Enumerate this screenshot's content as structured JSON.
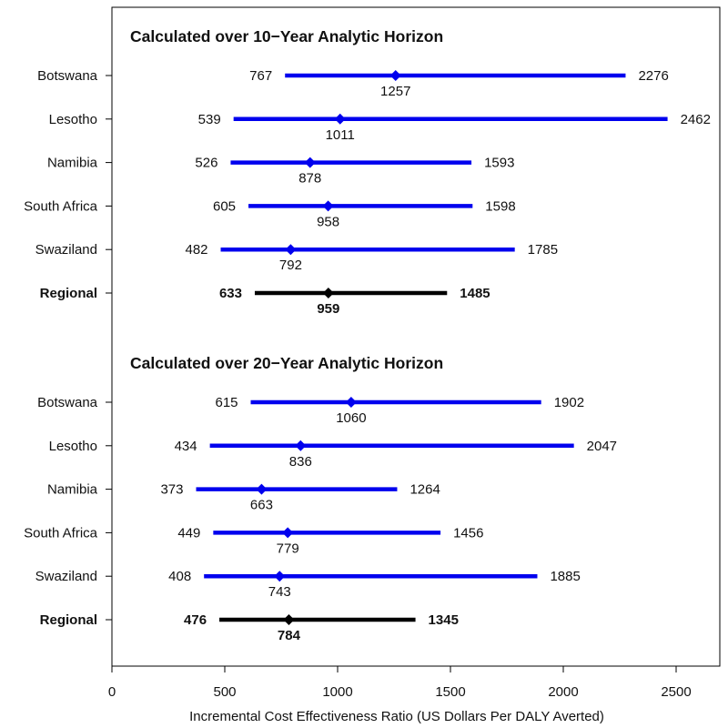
{
  "chart_data": {
    "type": "forest",
    "xlabel": "Incremental Cost Effectiveness Ratio (US Dollars Per DALY Averted)",
    "xlim": [
      0,
      2700
    ],
    "xticks": [
      0,
      500,
      1000,
      1500,
      2000,
      2500
    ],
    "grid": false,
    "colors": {
      "country": "#0000ee",
      "regional": "#000000"
    },
    "panels": [
      {
        "title": "Calculated over 10−Year Analytic Horizon",
        "rows": [
          {
            "label": "Botswana",
            "low": 767,
            "point": 1257,
            "high": 2276,
            "regional": false
          },
          {
            "label": "Lesotho",
            "low": 539,
            "point": 1011,
            "high": 2462,
            "regional": false
          },
          {
            "label": "Namibia",
            "low": 526,
            "point": 878,
            "high": 1593,
            "regional": false
          },
          {
            "label": "South Africa",
            "low": 605,
            "point": 958,
            "high": 1598,
            "regional": false
          },
          {
            "label": "Swaziland",
            "low": 482,
            "point": 792,
            "high": 1785,
            "regional": false
          },
          {
            "label": "Regional",
            "low": 633,
            "point": 959,
            "high": 1485,
            "regional": true
          }
        ]
      },
      {
        "title": "Calculated over 20−Year Analytic Horizon",
        "rows": [
          {
            "label": "Botswana",
            "low": 615,
            "point": 1060,
            "high": 1902,
            "regional": false
          },
          {
            "label": "Lesotho",
            "low": 434,
            "point": 836,
            "high": 2047,
            "regional": false
          },
          {
            "label": "Namibia",
            "low": 373,
            "point": 663,
            "high": 1264,
            "regional": false
          },
          {
            "label": "South Africa",
            "low": 449,
            "point": 779,
            "high": 1456,
            "regional": false
          },
          {
            "label": "Swaziland",
            "low": 408,
            "point": 743,
            "high": 1885,
            "regional": false
          },
          {
            "label": "Regional",
            "low": 476,
            "point": 784,
            "high": 1345,
            "regional": true
          }
        ]
      }
    ]
  }
}
